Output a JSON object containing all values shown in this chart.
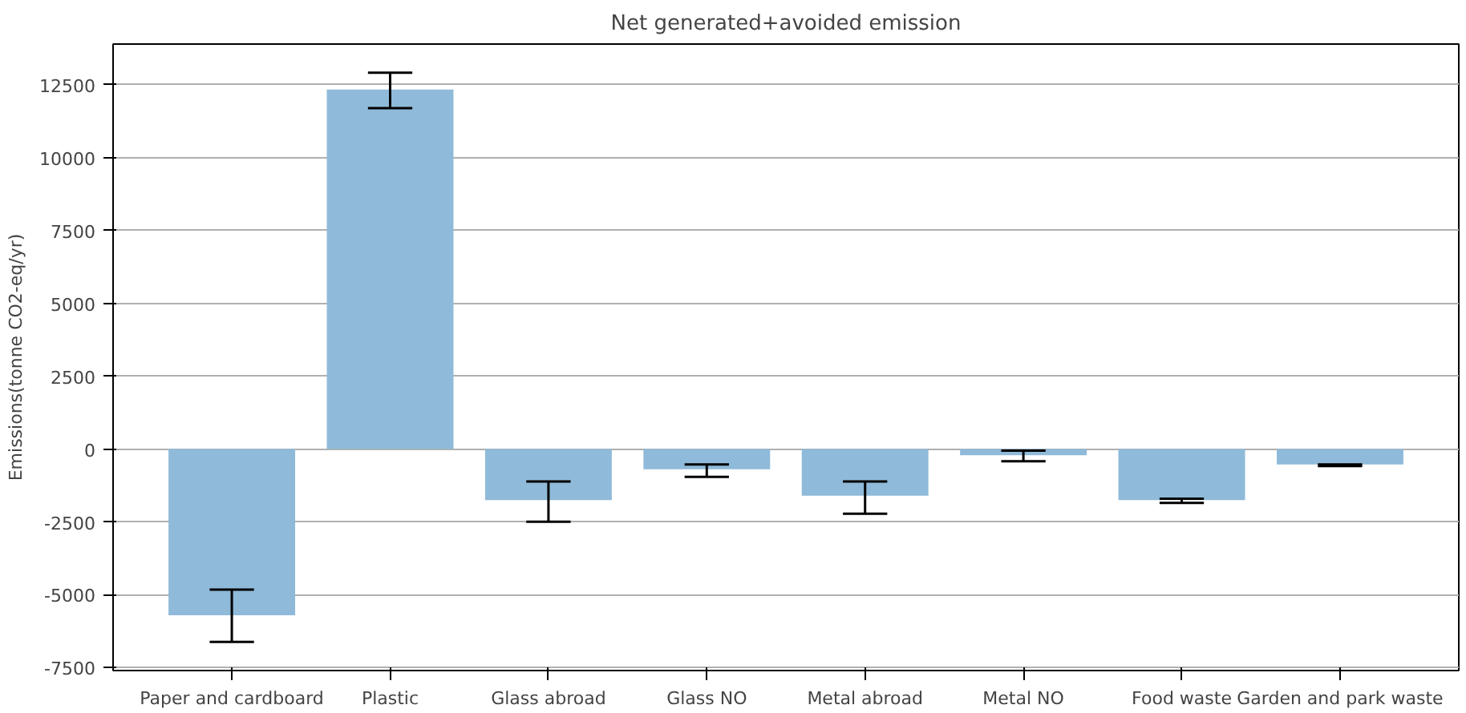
{
  "chart_data": {
    "type": "bar",
    "title": "Net generated+avoided emission",
    "ylabel": "Emissions(tonne CO2-eq/yr)",
    "categories": [
      "Paper and cardboard",
      "Plastic",
      "Glass abroad",
      "Glass NO",
      "Metal abroad",
      "Metal NO",
      "Food waste",
      "Garden and park waste"
    ],
    "values": [
      -5700,
      12340,
      -1750,
      -690,
      -1600,
      -210,
      -1750,
      -530
    ],
    "errors": [
      [
        -6620,
        -4820
      ],
      [
        11700,
        12920
      ],
      [
        -2490,
        -1110
      ],
      [
        -950,
        -530
      ],
      [
        -2220,
        -1110
      ],
      [
        -420,
        -50
      ],
      [
        -1850,
        -1700
      ],
      [
        -580,
        -530
      ]
    ],
    "color": "#8fbad9",
    "ylim": [
      -7600,
      13900
    ],
    "yticks": [
      -7500,
      -5000,
      -2500,
      0,
      2500,
      5000,
      7500,
      10000,
      12500
    ],
    "grid": "y"
  }
}
